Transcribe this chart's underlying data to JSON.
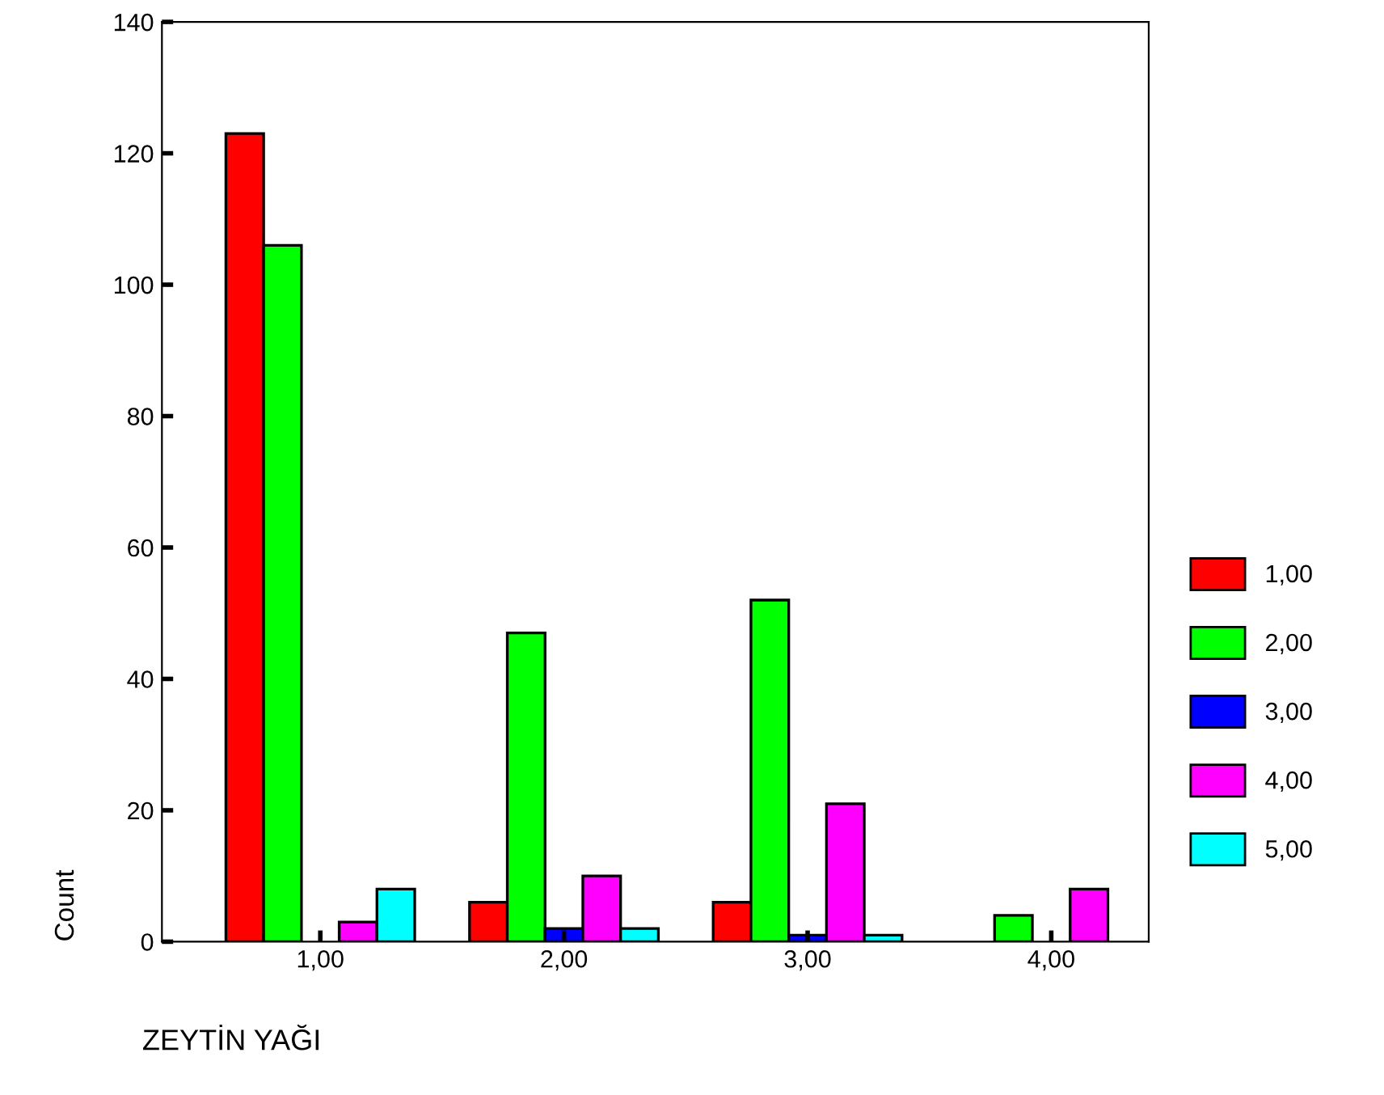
{
  "chart_data": {
    "type": "bar",
    "xlabel": "ZEYTİN YAĞI",
    "ylabel": "Count",
    "categories": [
      "1,00",
      "2,00",
      "3,00",
      "4,00"
    ],
    "series": [
      {
        "name": "1,00",
        "color": "#ff0000",
        "values": [
          123,
          6,
          6,
          0
        ]
      },
      {
        "name": "2,00",
        "color": "#00ff00",
        "values": [
          106,
          47,
          52,
          4
        ]
      },
      {
        "name": "3,00",
        "color": "#0000ff",
        "values": [
          0,
          2,
          1,
          0
        ]
      },
      {
        "name": "4,00",
        "color": "#ff00ff",
        "values": [
          3,
          10,
          21,
          8
        ]
      },
      {
        "name": "5,00",
        "color": "#00ffff",
        "values": [
          8,
          2,
          1,
          0
        ]
      }
    ],
    "ylim": [
      0,
      140
    ],
    "yticks": [
      0,
      20,
      40,
      60,
      80,
      100,
      120,
      140
    ],
    "grid": false,
    "legend": "right"
  }
}
